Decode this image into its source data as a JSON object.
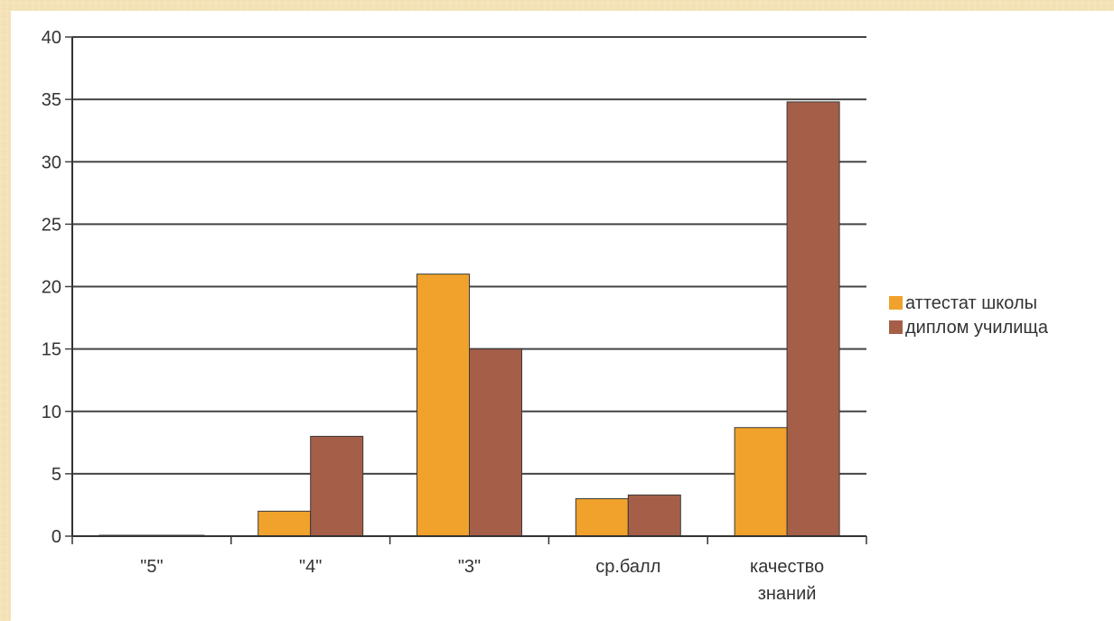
{
  "chart_data": {
    "type": "bar",
    "categories": [
      "\"5\"",
      "\"4\"",
      "\"3\"",
      "ср.балл",
      "качество знаний"
    ],
    "category_lines": [
      [
        "\"5\""
      ],
      [
        "\"4\""
      ],
      [
        "\"3\""
      ],
      [
        "ср.балл"
      ],
      [
        "качество",
        "знаний"
      ]
    ],
    "series": [
      {
        "name": "аттестат школы",
        "values": [
          0,
          2,
          21,
          3,
          8.7
        ],
        "color": "#f0a22c"
      },
      {
        "name": "диплом училища",
        "values": [
          0,
          8,
          15,
          3.3,
          34.8
        ],
        "color": "#a55e48"
      }
    ],
    "title": "",
    "xlabel": "",
    "ylabel": "",
    "ylim": [
      0,
      40
    ],
    "yticks": [
      "0",
      "5",
      "10",
      "15",
      "20",
      "25",
      "30",
      "35",
      "40"
    ],
    "grid": true,
    "legend_position": "right"
  }
}
